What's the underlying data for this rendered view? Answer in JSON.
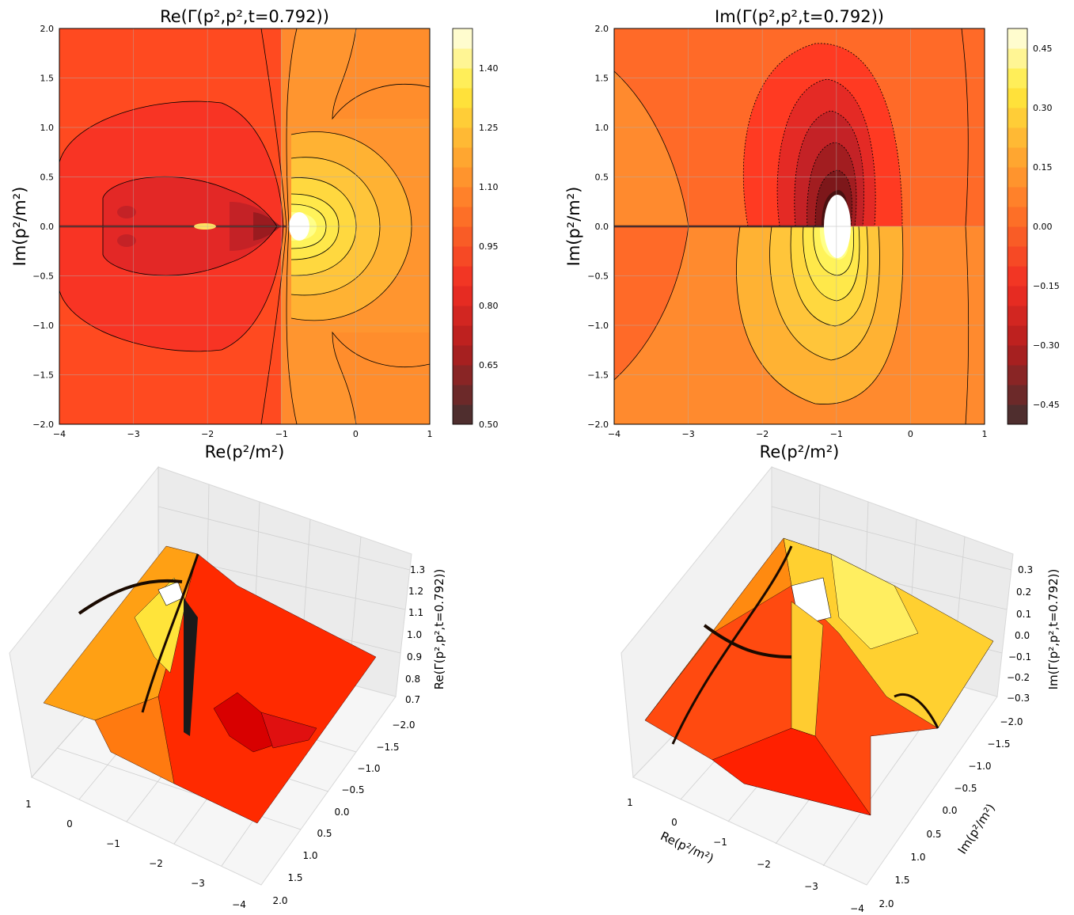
{
  "figure": {
    "colormap": "hot",
    "contour_style": "filled contours with black contour lines; negative levels dashed",
    "grid": true
  },
  "chart_data": [
    {
      "id": "re-contour",
      "type": "heatmap",
      "title": "Re(Γ(p²,p²,t=0.792))",
      "xlabel": "Re(p²/m²)",
      "ylabel": "Im(p²/m²)",
      "xlim": [
        -4,
        1
      ],
      "ylim": [
        -2,
        2
      ],
      "x_ticks": [
        "−4",
        "−3",
        "−2",
        "−1",
        "0",
        "1"
      ],
      "y_ticks": [
        "−2.0",
        "−1.5",
        "−1.0",
        "−0.5",
        "0.0",
        "0.5",
        "1.0",
        "1.5",
        "2.0"
      ],
      "colorbar": {
        "range": [
          0.5,
          1.5
        ],
        "ticks": [
          "0.50",
          "0.65",
          "0.80",
          "0.95",
          "1.10",
          "1.25",
          "1.40"
        ],
        "levels": 20
      },
      "features": {
        "singularity_at": [
          -0.85,
          0.0
        ],
        "left_region_value": 0.85,
        "right_region_value": 1.05,
        "peak_value": 1.5,
        "trough_value": 0.55,
        "branch_cut": "along real axis for Re(p²) < -1"
      }
    },
    {
      "id": "im-contour",
      "type": "heatmap",
      "title": "Im(Γ(p²,p²,t=0.792))",
      "xlabel": "Re(p²/m²)",
      "ylabel": "Im(p²/m²)",
      "xlim": [
        -4,
        1
      ],
      "ylim": [
        -2,
        2
      ],
      "x_ticks": [
        "−4",
        "−3",
        "−2",
        "−1",
        "0",
        "1"
      ],
      "y_ticks": [
        "−2.0",
        "−1.5",
        "−1.0",
        "−0.5",
        "0.0",
        "0.5",
        "1.0",
        "1.5",
        "2.0"
      ],
      "colorbar": {
        "range": [
          -0.5,
          0.5
        ],
        "ticks": [
          "−0.45",
          "−0.30",
          "−0.15",
          "0.00",
          "0.15",
          "0.30",
          "0.45"
        ],
        "levels": 20
      },
      "features": {
        "singularity_at": [
          -1.0,
          0.0
        ],
        "upper_lobe_value": -0.5,
        "lower_lobe_value": 0.5,
        "background_value": 0.0
      }
    },
    {
      "id": "re-surface",
      "type": "surface3d",
      "x_ticks": [
        "1",
        "0",
        "−1",
        "−2",
        "−3",
        "−4"
      ],
      "y_ticks": [
        "−2.0",
        "−1.5",
        "−1.0",
        "−0.5",
        "0.0",
        "0.5",
        "1.0",
        "1.5",
        "2.0"
      ],
      "z_ticks": [
        "0.7",
        "0.8",
        "0.9",
        "1.0",
        "1.1",
        "1.2",
        "1.3"
      ],
      "zlabel": "Re(Γ(p²,p²,t=0.792))",
      "zlim": [
        0.7,
        1.3
      ]
    },
    {
      "id": "im-surface",
      "type": "surface3d",
      "x_ticks": [
        "1",
        "0",
        "−1",
        "−2",
        "−3",
        "−4"
      ],
      "y_ticks": [
        "−2.0",
        "−1.5",
        "−1.0",
        "−0.5",
        "0.0",
        "0.5",
        "1.0",
        "1.5",
        "2.0"
      ],
      "z_ticks": [
        "−0.3",
        "−0.2",
        "−0.1",
        "0.0",
        "0.1",
        "0.2",
        "0.3"
      ],
      "xlabel": "Re(p²/m²)",
      "ylabel": "Im(p²/m²)",
      "zlabel": "Im(Γ(p²,p²,t=0.792))",
      "zlim": [
        -0.3,
        0.3
      ]
    }
  ]
}
